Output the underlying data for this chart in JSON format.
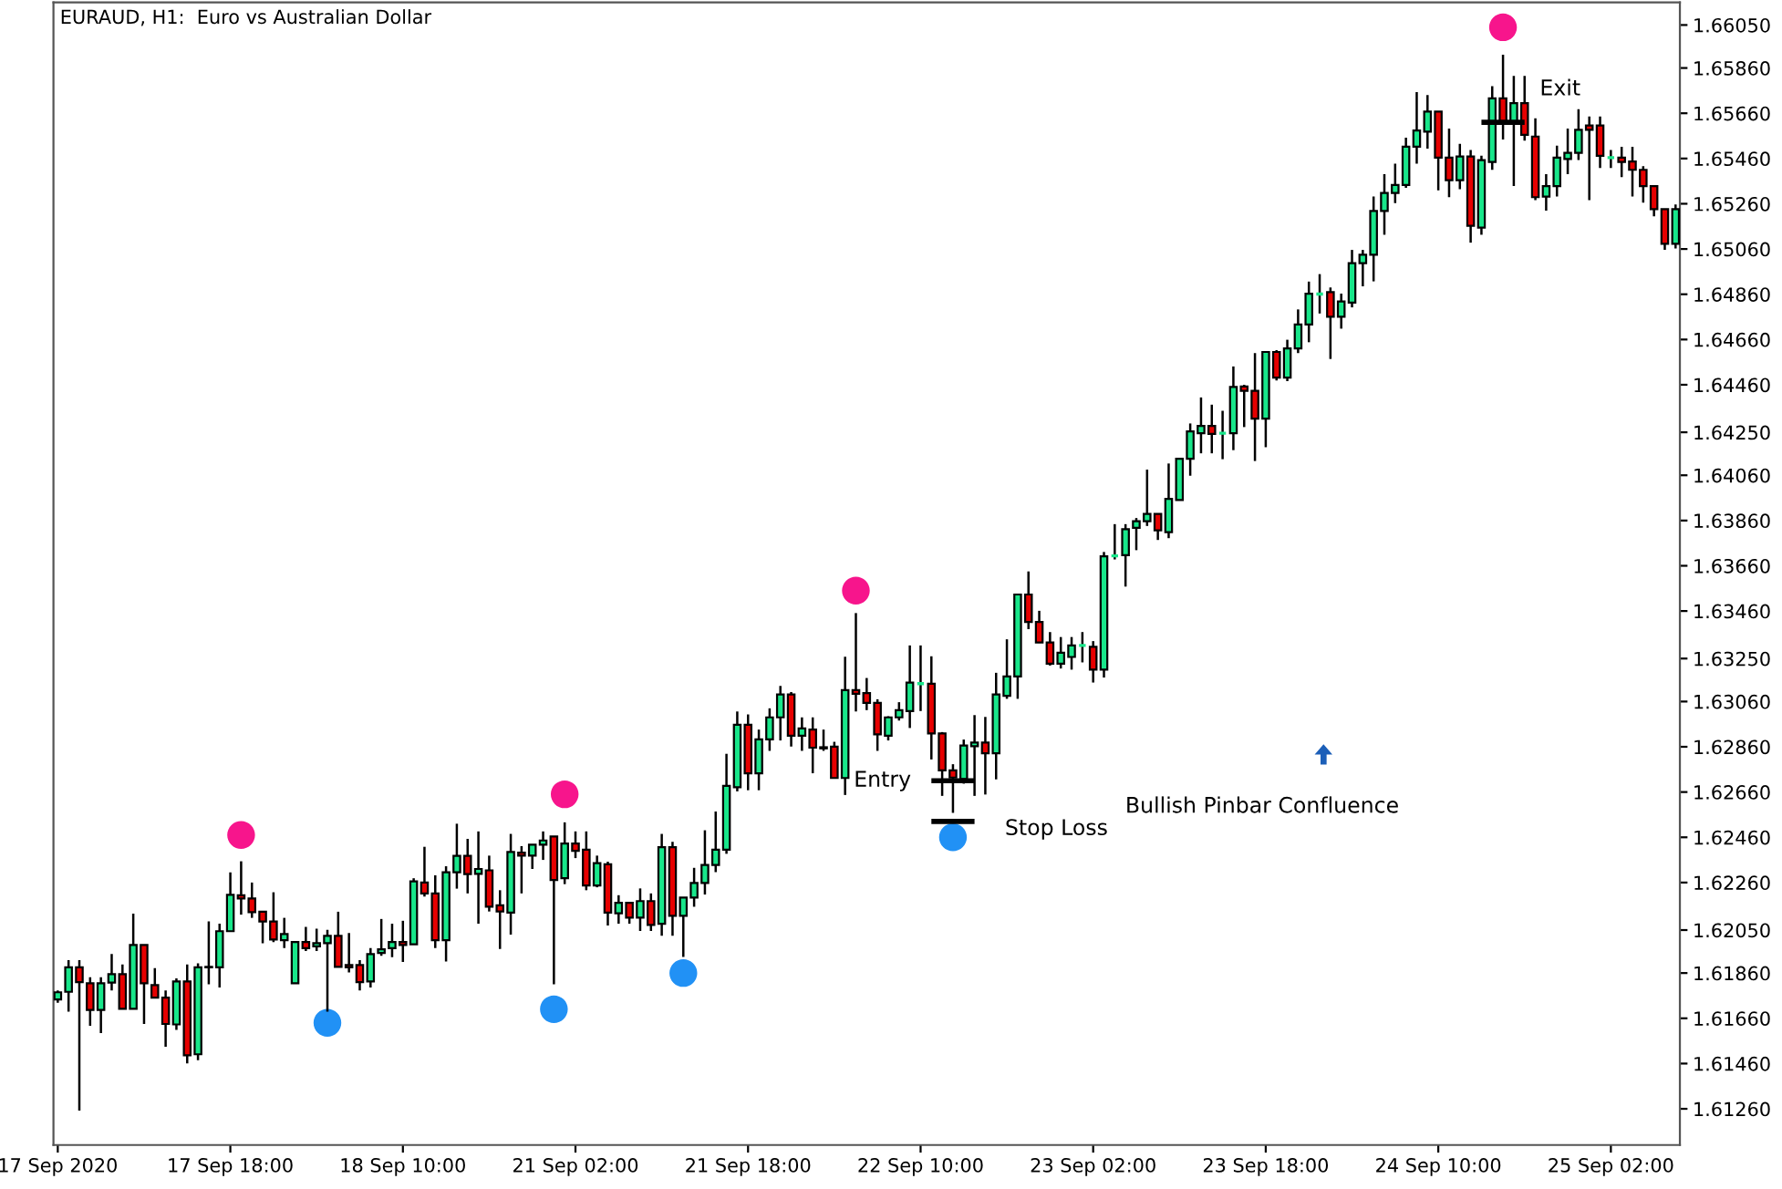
{
  "chart_data": {
    "type": "candlestick",
    "title": "EURAUD, H1:  Euro vs Australian Dollar",
    "categories": [
      "17 Sep 2020",
      null,
      null,
      null,
      null,
      null,
      null,
      null,
      null,
      null,
      null,
      null,
      null,
      null,
      null,
      null,
      "17 Sep 18:00",
      null,
      null,
      null,
      null,
      null,
      null,
      null,
      null,
      null,
      null,
      null,
      null,
      null,
      null,
      null,
      "18 Sep 10:00",
      null,
      null,
      null,
      null,
      null,
      null,
      null,
      null,
      null,
      null,
      null,
      null,
      null,
      null,
      null,
      "21 Sep 02:00",
      null,
      null,
      null,
      null,
      null,
      null,
      null,
      null,
      null,
      null,
      null,
      null,
      null,
      null,
      null,
      "21 Sep 18:00",
      null,
      null,
      null,
      null,
      null,
      null,
      null,
      null,
      null,
      null,
      null,
      null,
      null,
      null,
      null,
      "22 Sep 10:00",
      null,
      null,
      null,
      null,
      null,
      null,
      null,
      null,
      null,
      null,
      null,
      null,
      null,
      null,
      null,
      "23 Sep 02:00",
      null,
      null,
      null,
      null,
      null,
      null,
      null,
      null,
      null,
      null,
      null,
      null,
      null,
      null,
      null,
      "23 Sep 18:00",
      null,
      null,
      null,
      null,
      null,
      null,
      null,
      null,
      null,
      null,
      null,
      null,
      null,
      null,
      null,
      "24 Sep 10:00",
      null,
      null,
      null,
      null,
      null,
      null,
      null,
      null,
      null,
      null,
      null,
      null,
      null,
      null,
      null,
      "25 Sep 02:00",
      null,
      null,
      null,
      null,
      null,
      null
    ],
    "ohlc": [
      [
        1.61743,
        1.61783,
        1.61729,
        1.61775
      ],
      [
        1.61777,
        1.61917,
        1.61689,
        1.61885
      ],
      [
        1.61885,
        1.61917,
        1.61252,
        1.6182
      ],
      [
        1.61815,
        1.61842,
        1.61627,
        1.61697
      ],
      [
        1.61697,
        1.61842,
        1.61595,
        1.61815
      ],
      [
        1.61818,
        1.61944,
        1.61783,
        1.61855
      ],
      [
        1.61855,
        1.61898,
        1.61702,
        1.61702
      ],
      [
        1.61702,
        1.62123,
        1.61702,
        1.61984
      ],
      [
        1.61984,
        1.61984,
        1.61635,
        1.61815
      ],
      [
        1.61807,
        1.61882,
        1.61751,
        1.61751
      ],
      [
        1.61751,
        1.61783,
        1.61534,
        1.61635
      ],
      [
        1.61633,
        1.61836,
        1.61609,
        1.61823
      ],
      [
        1.61823,
        1.61898,
        1.61461,
        1.61496
      ],
      [
        1.61501,
        1.61903,
        1.61475,
        1.61885
      ],
      [
        1.61885,
        1.62088,
        1.6181,
        1.61887
      ],
      [
        1.61885,
        1.62078,
        1.61796,
        1.62045
      ],
      [
        1.62045,
        1.62305,
        1.62045,
        1.62206
      ],
      [
        1.62204,
        1.62354,
        1.62118,
        1.6219
      ],
      [
        1.6219,
        1.6226,
        1.62104,
        1.62129
      ],
      [
        1.62131,
        1.62131,
        1.61992,
        1.62088
      ],
      [
        1.62088,
        1.62217,
        1.61997,
        1.62008
      ],
      [
        1.62005,
        1.62104,
        1.6197,
        1.62032
      ],
      [
        1.61815,
        1.61997,
        1.61815,
        1.61997
      ],
      [
        1.61997,
        1.62064,
        1.61957,
        1.6197
      ],
      [
        1.61978,
        1.62056,
        1.61957,
        1.61992
      ],
      [
        1.61992,
        1.62051,
        1.61689,
        1.62024
      ],
      [
        1.62024,
        1.62131,
        1.61887,
        1.61887
      ],
      [
        1.61895,
        1.62037,
        1.61863,
        1.61885
      ],
      [
        1.61895,
        1.61917,
        1.61783,
        1.6182
      ],
      [
        1.61823,
        1.6197,
        1.61796,
        1.61944
      ],
      [
        1.61949,
        1.62099,
        1.61936,
        1.61965
      ],
      [
        1.6197,
        1.62078,
        1.6193,
        1.61997
      ],
      [
        1.61997,
        1.62091,
        1.61909,
        1.61984
      ],
      [
        1.61987,
        1.62279,
        1.61987,
        1.62265
      ],
      [
        1.6226,
        1.62418,
        1.62198,
        1.62212
      ],
      [
        1.62212,
        1.62292,
        1.6197,
        1.62005
      ],
      [
        1.62005,
        1.62332,
        1.61911,
        1.62305
      ],
      [
        1.62305,
        1.6252,
        1.62233,
        1.62378
      ],
      [
        1.62378,
        1.62453,
        1.62212,
        1.62297
      ],
      [
        1.62298,
        1.62486,
        1.62078,
        1.6232
      ],
      [
        1.62314,
        1.62379,
        1.62132,
        1.62153
      ],
      [
        1.62159,
        1.62226,
        1.61966,
        1.62132
      ],
      [
        1.62127,
        1.62475,
        1.6203,
        1.62395
      ],
      [
        1.62392,
        1.62421,
        1.62212,
        1.62379
      ],
      [
        1.62379,
        1.62427,
        1.6232,
        1.62427
      ],
      [
        1.62427,
        1.62486,
        1.6236,
        1.62446
      ],
      [
        1.62464,
        1.62464,
        1.6181,
        1.62271
      ],
      [
        1.62279,
        1.62526,
        1.62253,
        1.62432
      ],
      [
        1.62432,
        1.62486,
        1.62368,
        1.624
      ],
      [
        1.62405,
        1.62486,
        1.62226,
        1.62247
      ],
      [
        1.62247,
        1.62379,
        1.62239,
        1.62346
      ],
      [
        1.62341,
        1.62352,
        1.6207,
        1.62127
      ],
      [
        1.62124,
        1.62204,
        1.62078,
        1.6217
      ],
      [
        1.6217,
        1.6217,
        1.62078,
        1.62105
      ],
      [
        1.62105,
        1.62234,
        1.62046,
        1.62178
      ],
      [
        1.62178,
        1.62212,
        1.62046,
        1.62073
      ],
      [
        1.62078,
        1.62475,
        1.62025,
        1.62416
      ],
      [
        1.62416,
        1.6244,
        1.62025,
        1.62113
      ],
      [
        1.62113,
        1.62194,
        1.61931,
        1.62194
      ],
      [
        1.62194,
        1.62325,
        1.62153,
        1.62258
      ],
      [
        1.62258,
        1.62491,
        1.62207,
        1.62338
      ],
      [
        1.62338,
        1.62574,
        1.62306,
        1.62405
      ],
      [
        1.62405,
        1.62829,
        1.62387,
        1.62687
      ],
      [
        1.62681,
        1.63016,
        1.62663,
        1.62957
      ],
      [
        1.62957,
        1.63003,
        1.62668,
        1.62743
      ],
      [
        1.62743,
        1.62936,
        1.62668,
        1.62893
      ],
      [
        1.62893,
        1.6303,
        1.62842,
        1.6299
      ],
      [
        1.6299,
        1.63129,
        1.62888,
        1.63091
      ],
      [
        1.63091,
        1.63102,
        1.62861,
        1.62909
      ],
      [
        1.62909,
        1.6299,
        1.62842,
        1.62941
      ],
      [
        1.62936,
        1.6299,
        1.62743,
        1.62856
      ],
      [
        1.62858,
        1.62936,
        1.62842,
        1.62853
      ],
      [
        1.62861,
        1.62882,
        1.62722,
        1.62722
      ],
      [
        1.62722,
        1.63258,
        1.62647,
        1.6311
      ],
      [
        1.6311,
        1.63451,
        1.63016,
        1.63094
      ],
      [
        1.63097,
        1.63164,
        1.63022,
        1.63054
      ],
      [
        1.63054,
        1.6307,
        1.62842,
        1.62915
      ],
      [
        1.62909,
        1.62995,
        1.62888,
        1.6299
      ],
      [
        1.6299,
        1.63057,
        1.62976,
        1.63022
      ],
      [
        1.63018,
        1.63308,
        1.62943,
        1.63144
      ],
      [
        1.63139,
        1.63308,
        1.63018,
        1.63139
      ],
      [
        1.63139,
        1.6326,
        1.62804,
        1.62919
      ],
      [
        1.62919,
        1.62925,
        1.62643,
        1.62756
      ],
      [
        1.62756,
        1.62783,
        1.62568,
        1.62724
      ],
      [
        1.62718,
        1.62892,
        1.62697,
        1.62866
      ],
      [
        1.62863,
        1.63,
        1.62643,
        1.62879
      ],
      [
        1.62879,
        1.62992,
        1.62649,
        1.62831
      ],
      [
        1.62831,
        1.63187,
        1.62716,
        1.63091
      ],
      [
        1.63085,
        1.63335,
        1.63072,
        1.63171
      ],
      [
        1.63171,
        1.63533,
        1.63072,
        1.63533
      ],
      [
        1.63533,
        1.63635,
        1.6338,
        1.63412
      ],
      [
        1.63412,
        1.63461,
        1.63319,
        1.63321
      ],
      [
        1.63321,
        1.63367,
        1.63219,
        1.63227
      ],
      [
        1.63227,
        1.63345,
        1.63206,
        1.63276
      ],
      [
        1.63257,
        1.63345,
        1.63201,
        1.63308
      ],
      [
        1.63308,
        1.63367,
        1.63233,
        1.63308
      ],
      [
        1.63302,
        1.63327,
        1.63144,
        1.63201
      ],
      [
        1.63201,
        1.63721,
        1.63166,
        1.63702
      ],
      [
        1.63704,
        1.63844,
        1.63688,
        1.63704
      ],
      [
        1.63707,
        1.63844,
        1.63568,
        1.63822
      ],
      [
        1.63828,
        1.63871,
        1.63729,
        1.63857
      ],
      [
        1.63857,
        1.64085,
        1.63836,
        1.63889
      ],
      [
        1.63889,
        1.63889,
        1.63774,
        1.63817
      ],
      [
        1.63809,
        1.64112,
        1.63782,
        1.63956
      ],
      [
        1.63951,
        1.64133,
        1.63948,
        1.64133
      ],
      [
        1.64133,
        1.64289,
        1.64058,
        1.64254
      ],
      [
        1.64246,
        1.64404,
        1.64157,
        1.64278
      ],
      [
        1.64278,
        1.64372,
        1.64157,
        1.64243
      ],
      [
        1.64246,
        1.64345,
        1.64131,
        1.64246
      ],
      [
        1.64246,
        1.64541,
        1.64171,
        1.6445
      ],
      [
        1.64452,
        1.6446,
        1.64273,
        1.64433
      ],
      [
        1.64433,
        1.646,
        1.64123,
        1.6431
      ],
      [
        1.6431,
        1.64605,
        1.64184,
        1.64605
      ],
      [
        1.64605,
        1.64613,
        1.64479,
        1.64492
      ],
      [
        1.64492,
        1.64659,
        1.64476,
        1.64621
      ],
      [
        1.64621,
        1.64793,
        1.646,
        1.64726
      ],
      [
        1.64726,
        1.64916,
        1.64648,
        1.64862
      ],
      [
        1.64861,
        1.64949,
        1.64775,
        1.64861
      ],
      [
        1.64869,
        1.6489,
        1.64574,
        1.64761
      ],
      [
        1.64761,
        1.64863,
        1.64708,
        1.64828
      ],
      [
        1.64823,
        1.65056,
        1.64802,
        1.64997
      ],
      [
        1.64997,
        1.65056,
        1.64895,
        1.65035
      ],
      [
        1.65035,
        1.65292,
        1.64917,
        1.65228
      ],
      [
        1.65228,
        1.65391,
        1.65123,
        1.65308
      ],
      [
        1.65308,
        1.65437,
        1.65263,
        1.65343
      ],
      [
        1.65343,
        1.65552,
        1.6533,
        1.65512
      ],
      [
        1.65512,
        1.65753,
        1.65437,
        1.65584
      ],
      [
        1.65579,
        1.6574,
        1.65504,
        1.65667
      ],
      [
        1.65667,
        1.65667,
        1.65319,
        1.65464
      ],
      [
        1.65464,
        1.65592,
        1.65289,
        1.65364
      ],
      [
        1.65364,
        1.65525,
        1.65324,
        1.65469
      ],
      [
        1.65469,
        1.65498,
        1.65088,
        1.65163
      ],
      [
        1.65155,
        1.65472,
        1.65123,
        1.65453
      ],
      [
        1.65445,
        1.6578,
        1.6541,
        1.65726
      ],
      [
        1.65726,
        1.65919,
        1.65544,
        1.65624
      ],
      [
        1.65624,
        1.65825,
        1.65338,
        1.65705
      ],
      [
        1.65705,
        1.65825,
        1.65539,
        1.65565
      ],
      [
        1.65557,
        1.65638,
        1.65276,
        1.65289
      ],
      [
        1.65292,
        1.65391,
        1.6523,
        1.65338
      ],
      [
        1.65338,
        1.65517,
        1.65292,
        1.65464
      ],
      [
        1.65458,
        1.65592,
        1.65391,
        1.65485
      ],
      [
        1.65485,
        1.65678,
        1.65453,
        1.65587
      ],
      [
        1.65606,
        1.65646,
        1.65276,
        1.65587
      ],
      [
        1.65606,
        1.65646,
        1.65418,
        1.65472
      ],
      [
        1.65464,
        1.65498,
        1.65418,
        1.65464
      ],
      [
        1.65464,
        1.65512,
        1.65378,
        1.65445
      ],
      [
        1.65447,
        1.65512,
        1.65292,
        1.6541
      ],
      [
        1.6541,
        1.65426,
        1.65265,
        1.65338
      ],
      [
        1.65338,
        1.65338,
        1.65204,
        1.65236
      ],
      [
        1.65236,
        1.65236,
        1.65056,
        1.65083
      ],
      [
        1.65083,
        1.65257,
        1.65062,
        1.65236
      ]
    ],
    "colors": [
      "#18e68a",
      "#18e68a",
      "#e60000",
      "#e60000",
      "#18e68a",
      "#18e68a",
      "#e60000",
      "#18e68a",
      "#e60000",
      "#e60000",
      "#e60000",
      "#18e68a",
      "#e60000",
      "#18e68a",
      "#18e68a",
      "#18e68a",
      "#18e68a",
      "#e60000",
      "#e60000",
      "#e60000",
      "#e60000",
      "#18e68a",
      "#18e68a",
      "#e60000",
      "#18e68a",
      "#18e68a",
      "#e60000",
      "#e60000",
      "#e60000",
      "#18e68a",
      "#18e68a",
      "#18e68a",
      "#e60000",
      "#18e68a",
      "#e60000",
      "#e60000",
      "#18e68a",
      "#18e68a",
      "#e60000",
      "#18e68a",
      "#e60000",
      "#e60000",
      "#18e68a",
      "#e60000",
      "#18e68a",
      "#18e68a",
      "#e60000",
      "#18e68a",
      "#e60000",
      "#e60000",
      "#18e68a",
      "#e60000",
      "#18e68a",
      "#e60000",
      "#18e68a",
      "#e60000",
      "#18e68a",
      "#e60000",
      "#18e68a",
      "#18e68a",
      "#18e68a",
      "#18e68a",
      "#18e68a",
      "#18e68a",
      "#e60000",
      "#18e68a",
      "#18e68a",
      "#18e68a",
      "#e60000",
      "#18e68a",
      "#e60000",
      "#e60000",
      "#e60000",
      "#18e68a",
      "#e60000",
      "#e60000",
      "#e60000",
      "#18e68a",
      "#18e68a",
      "#18e68a",
      "#18e68a",
      "#e60000",
      "#e60000",
      "#e60000",
      "#18e68a",
      "#18e68a",
      "#e60000",
      "#18e68a",
      "#18e68a",
      "#18e68a",
      "#e60000",
      "#e60000",
      "#e60000",
      "#18e68a",
      "#18e68a",
      "#18e68a",
      "#e60000",
      "#18e68a",
      "#18e68a",
      "#18e68a",
      "#18e68a",
      "#18e68a",
      "#e60000",
      "#18e68a",
      "#18e68a",
      "#18e68a",
      "#18e68a",
      "#e60000",
      "#18e68a",
      "#18e68a",
      "#e60000",
      "#e60000",
      "#18e68a",
      "#e60000",
      "#18e68a",
      "#18e68a",
      "#18e68a",
      "#18e68a",
      "#e60000",
      "#18e68a",
      "#18e68a",
      "#18e68a",
      "#18e68a",
      "#18e68a",
      "#18e68a",
      "#18e68a",
      "#18e68a",
      "#18e68a",
      "#e60000",
      "#e60000",
      "#18e68a",
      "#e60000",
      "#18e68a",
      "#18e68a",
      "#e60000",
      "#18e68a",
      "#e60000",
      "#e60000",
      "#18e68a",
      "#18e68a",
      "#18e68a",
      "#18e68a",
      "#e60000",
      "#e60000",
      "#18e68a",
      "#e60000",
      "#e60000",
      "#e60000",
      "#e60000",
      "#e60000",
      "#18e68a"
    ],
    "series": [
      {
        "type": "scatter",
        "marker": "circle",
        "color": "#f7158c",
        "values": [
          null,
          null,
          null,
          null,
          null,
          null,
          null,
          null,
          null,
          null,
          null,
          null,
          null,
          null,
          null,
          null,
          null,
          1.6247,
          null,
          null,
          null,
          null,
          null,
          null,
          null,
          null,
          null,
          null,
          null,
          null,
          null,
          null,
          null,
          null,
          null,
          null,
          null,
          null,
          null,
          null,
          null,
          null,
          null,
          null,
          null,
          null,
          null,
          1.6265,
          null,
          null,
          null,
          null,
          null,
          null,
          null,
          null,
          null,
          null,
          null,
          null,
          null,
          null,
          null,
          null,
          null,
          null,
          null,
          null,
          null,
          null,
          null,
          null,
          null,
          null,
          1.6355,
          null,
          null,
          null,
          null,
          null,
          null,
          null,
          null,
          null,
          null,
          null,
          null,
          null,
          null,
          null,
          null,
          null,
          null,
          null,
          null,
          null,
          null,
          null,
          null,
          null,
          null,
          null,
          null,
          null,
          null,
          null,
          null,
          null,
          null,
          null,
          null,
          null,
          null,
          null,
          null,
          null,
          null,
          null,
          null,
          null,
          null,
          null,
          null,
          null,
          null,
          null,
          null,
          null,
          null,
          null,
          null,
          null,
          null,
          null,
          1.6604,
          null,
          null,
          null,
          null,
          null,
          null,
          null,
          null,
          null,
          null,
          null,
          null,
          null,
          null,
          null,
          null
        ]
      },
      {
        "type": "scatter",
        "marker": "circle",
        "color": "#2191f5",
        "values": [
          null,
          null,
          null,
          null,
          null,
          null,
          null,
          null,
          null,
          null,
          null,
          null,
          null,
          null,
          null,
          null,
          null,
          null,
          null,
          null,
          null,
          null,
          null,
          null,
          null,
          1.6164,
          null,
          null,
          null,
          null,
          null,
          null,
          null,
          null,
          null,
          null,
          null,
          null,
          null,
          null,
          null,
          null,
          null,
          null,
          null,
          null,
          1.617,
          null,
          null,
          null,
          null,
          null,
          null,
          null,
          null,
          null,
          null,
          null,
          1.6186,
          null,
          null,
          null,
          null,
          null,
          null,
          null,
          null,
          null,
          null,
          null,
          null,
          null,
          null,
          null,
          null,
          null,
          null,
          null,
          null,
          null,
          null,
          null,
          null,
          1.6246,
          null,
          null,
          null,
          null,
          null,
          null,
          null,
          null,
          null,
          null,
          null,
          null,
          null,
          null,
          null,
          null,
          null,
          null,
          null,
          null,
          null,
          null,
          null,
          null,
          null,
          null,
          null,
          null,
          null,
          null,
          null,
          null,
          null,
          null,
          null,
          null,
          null,
          null,
          null,
          null,
          null,
          null,
          null,
          null,
          null,
          null,
          null,
          null,
          null,
          null,
          null,
          null,
          null,
          null,
          null,
          null,
          null,
          null,
          null,
          null,
          null,
          null,
          null,
          null,
          null,
          null,
          null
        ]
      },
      {
        "type": "line",
        "name": "Entry",
        "color": "#000000",
        "values": [
          null,
          null,
          null,
          null,
          null,
          null,
          null,
          null,
          null,
          null,
          null,
          null,
          null,
          null,
          null,
          null,
          null,
          null,
          null,
          null,
          null,
          null,
          null,
          null,
          null,
          null,
          null,
          null,
          null,
          null,
          null,
          null,
          null,
          null,
          null,
          null,
          null,
          null,
          null,
          null,
          null,
          null,
          null,
          null,
          null,
          null,
          null,
          null,
          null,
          null,
          null,
          null,
          null,
          null,
          null,
          null,
          null,
          null,
          null,
          null,
          null,
          null,
          null,
          null,
          null,
          null,
          null,
          null,
          null,
          null,
          null,
          null,
          null,
          null,
          null,
          null,
          null,
          null,
          null,
          null,
          null,
          1.6271,
          1.6271,
          1.6271,
          1.6271,
          1.6271,
          null,
          null,
          null,
          null,
          null,
          null,
          null,
          null,
          null,
          null,
          null,
          null,
          null,
          null,
          null,
          null,
          null,
          null,
          null,
          null,
          null,
          null,
          null,
          null,
          null,
          null,
          null,
          null,
          null,
          null,
          null,
          null,
          null,
          null,
          null,
          null,
          null,
          null,
          null,
          null,
          null,
          null,
          null,
          null,
          null,
          null,
          null,
          null,
          null,
          null,
          null,
          null,
          null,
          null,
          null,
          null,
          null,
          null,
          null,
          null,
          null,
          null,
          null,
          null,
          null
        ]
      },
      {
        "type": "line",
        "name": "Stop Loss",
        "color": "#000000",
        "values": [
          null,
          null,
          null,
          null,
          null,
          null,
          null,
          null,
          null,
          null,
          null,
          null,
          null,
          null,
          null,
          null,
          null,
          null,
          null,
          null,
          null,
          null,
          null,
          null,
          null,
          null,
          null,
          null,
          null,
          null,
          null,
          null,
          null,
          null,
          null,
          null,
          null,
          null,
          null,
          null,
          null,
          null,
          null,
          null,
          null,
          null,
          null,
          null,
          null,
          null,
          null,
          null,
          null,
          null,
          null,
          null,
          null,
          null,
          null,
          null,
          null,
          null,
          null,
          null,
          null,
          null,
          null,
          null,
          null,
          null,
          null,
          null,
          null,
          null,
          null,
          null,
          null,
          null,
          null,
          null,
          null,
          1.6253,
          1.6253,
          1.6253,
          1.6253,
          1.6253,
          null,
          null,
          null,
          null,
          null,
          null,
          null,
          null,
          null,
          null,
          null,
          null,
          null,
          null,
          null,
          null,
          null,
          null,
          null,
          null,
          null,
          null,
          null,
          null,
          null,
          null,
          null,
          null,
          null,
          null,
          null,
          null,
          null,
          null,
          null,
          null,
          null,
          null,
          null,
          null,
          null,
          null,
          null,
          null,
          null,
          null,
          null,
          null,
          null,
          null,
          null,
          null,
          null,
          null,
          null,
          null,
          null,
          null,
          null,
          null,
          null,
          null,
          null,
          null,
          null
        ]
      },
      {
        "type": "line",
        "name": "Exit",
        "color": "#000000",
        "values": [
          null,
          null,
          null,
          null,
          null,
          null,
          null,
          null,
          null,
          null,
          null,
          null,
          null,
          null,
          null,
          null,
          null,
          null,
          null,
          null,
          null,
          null,
          null,
          null,
          null,
          null,
          null,
          null,
          null,
          null,
          null,
          null,
          null,
          null,
          null,
          null,
          null,
          null,
          null,
          null,
          null,
          null,
          null,
          null,
          null,
          null,
          null,
          null,
          null,
          null,
          null,
          null,
          null,
          null,
          null,
          null,
          null,
          null,
          null,
          null,
          null,
          null,
          null,
          null,
          null,
          null,
          null,
          null,
          null,
          null,
          null,
          null,
          null,
          null,
          null,
          null,
          null,
          null,
          null,
          null,
          null,
          null,
          null,
          null,
          null,
          null,
          null,
          null,
          null,
          null,
          null,
          null,
          null,
          null,
          null,
          null,
          null,
          null,
          null,
          null,
          null,
          null,
          null,
          null,
          null,
          null,
          null,
          null,
          null,
          null,
          null,
          null,
          null,
          null,
          null,
          null,
          null,
          null,
          null,
          null,
          null,
          null,
          null,
          null,
          null,
          null,
          null,
          null,
          null,
          null,
          null,
          null,
          1.6562,
          1.6562,
          1.6562,
          1.6562,
          1.6562,
          null,
          null,
          null,
          null,
          null,
          null,
          null,
          null,
          null,
          null,
          null,
          null,
          null,
          null
        ]
      }
    ],
    "annotations": [
      "Bullish Pinbar Confluence"
    ],
    "ylim": [
      1.611,
      1.6615
    ],
    "yticks": [
      {
        "value": 1.6126,
        "label": "1.61260"
      },
      {
        "value": 1.6146,
        "label": "1.61460"
      },
      {
        "value": 1.6166,
        "label": "1.61660"
      },
      {
        "value": 1.6186,
        "label": "1.61860"
      },
      {
        "value": 1.6205,
        "label": "1.62050"
      },
      {
        "value": 1.6226,
        "label": "1.62260"
      },
      {
        "value": 1.6246,
        "label": "1.62460"
      },
      {
        "value": 1.6266,
        "label": "1.62660"
      },
      {
        "value": 1.6286,
        "label": "1.62860"
      },
      {
        "value": 1.6306,
        "label": "1.63060"
      },
      {
        "value": 1.6325,
        "label": "1.63250"
      },
      {
        "value": 1.6346,
        "label": "1.63460"
      },
      {
        "value": 1.6366,
        "label": "1.63660"
      },
      {
        "value": 1.6386,
        "label": "1.63860"
      },
      {
        "value": 1.6406,
        "label": "1.64060"
      },
      {
        "value": 1.6425,
        "label": "1.64250"
      },
      {
        "value": 1.6446,
        "label": "1.64460"
      },
      {
        "value": 1.6466,
        "label": "1.64660"
      },
      {
        "value": 1.6486,
        "label": "1.64860"
      },
      {
        "value": 1.6506,
        "label": "1.65060"
      },
      {
        "value": 1.6526,
        "label": "1.65260"
      },
      {
        "value": 1.6546,
        "label": "1.65460"
      },
      {
        "value": 1.6566,
        "label": "1.65660"
      },
      {
        "value": 1.6586,
        "label": "1.65860"
      },
      {
        "value": 1.6605,
        "label": "1.66050"
      }
    ]
  }
}
